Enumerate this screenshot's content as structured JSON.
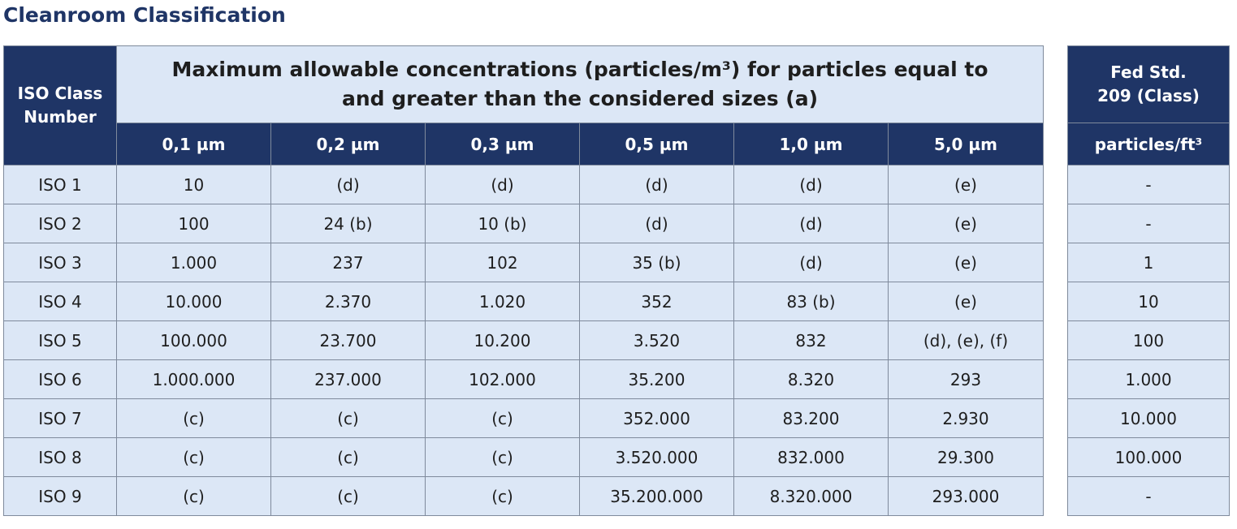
{
  "title": "Cleanroom Classification",
  "main_table": {
    "iso_header": "ISO Class Number",
    "concentration_header": "Maximum allowable concentrations (particles/m³) for particles equal to and greater than the considered sizes (a)",
    "sizes": [
      "0,1 µm",
      "0,2 µm",
      "0,3 µm",
      "0,5 µm",
      "1,0 µm",
      "5,0 µm"
    ],
    "rows": [
      {
        "iso": "ISO 1",
        "values": [
          "10",
          "(d)",
          "(d)",
          "(d)",
          "(d)",
          "(e)"
        ]
      },
      {
        "iso": "ISO 2",
        "values": [
          "100",
          "24 (b)",
          "10 (b)",
          "(d)",
          "(d)",
          "(e)"
        ]
      },
      {
        "iso": "ISO 3",
        "values": [
          "1.000",
          "237",
          "102",
          "35 (b)",
          "(d)",
          "(e)"
        ]
      },
      {
        "iso": "ISO 4",
        "values": [
          "10.000",
          "2.370",
          "1.020",
          "352",
          "83 (b)",
          "(e)"
        ]
      },
      {
        "iso": "ISO 5",
        "values": [
          "100.000",
          "23.700",
          "10.200",
          "3.520",
          "832",
          "(d), (e), (f)"
        ]
      },
      {
        "iso": "ISO 6",
        "values": [
          "1.000.000",
          "237.000",
          "102.000",
          "35.200",
          "8.320",
          "293"
        ]
      },
      {
        "iso": "ISO 7",
        "values": [
          "(c)",
          "(c)",
          "(c)",
          "352.000",
          "83.200",
          "2.930"
        ]
      },
      {
        "iso": "ISO 8",
        "values": [
          "(c)",
          "(c)",
          "(c)",
          "3.520.000",
          "832.000",
          "29.300"
        ]
      },
      {
        "iso": "ISO 9",
        "values": [
          "(c)",
          "(c)",
          "(c)",
          "35.200.000",
          "8.320.000",
          "293.000"
        ]
      }
    ]
  },
  "fed_table": {
    "header": "Fed Std. 209 (Class)",
    "unit": "particles/ft³",
    "values": [
      "-",
      "-",
      "1",
      "10",
      "100",
      "1.000",
      "10.000",
      "100.000",
      "-"
    ]
  }
}
